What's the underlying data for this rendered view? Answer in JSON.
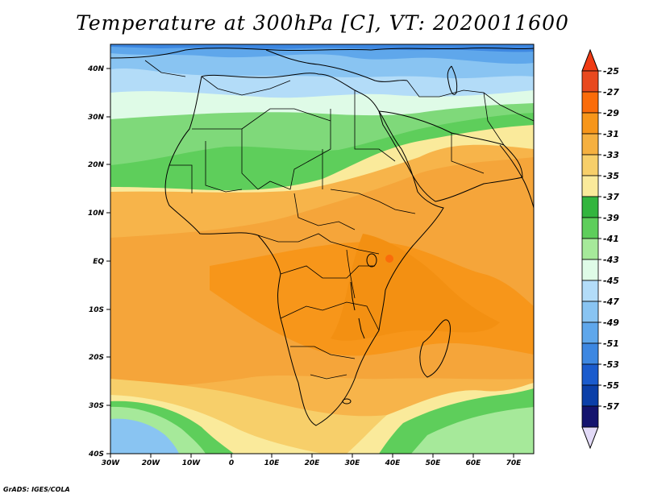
{
  "title": "Temperature at 300hPa [C], VT: 2020011600",
  "credit": "GrADS: IGES/COLA",
  "lon_ticks": [
    "30W",
    "20W",
    "10W",
    "0",
    "10E",
    "20E",
    "30E",
    "40E",
    "50E",
    "60E",
    "70E"
  ],
  "lat_ticks": [
    "40N",
    "30N",
    "20N",
    "10N",
    "EQ",
    "10S",
    "20S",
    "30S",
    "40S"
  ],
  "colorbar": {
    "labels": [
      "-25",
      "-27",
      "-29",
      "-31",
      "-33",
      "-35",
      "-37",
      "-39",
      "-41",
      "-43",
      "-45",
      "-47",
      "-49",
      "-51",
      "-53",
      "-55",
      "-57"
    ],
    "colors": [
      "#e8491f",
      "#fa6c0a",
      "#f7961a",
      "#f5b040",
      "#f7cf6a",
      "#faea9b",
      "#33b53e",
      "#5ece5b",
      "#a6e99a",
      "#dffbe7",
      "#b3dcf8",
      "#89c4f2",
      "#5fa7eb",
      "#3d87e1",
      "#1a5bcd",
      "#0b3fa8",
      "#14146e"
    ],
    "over_color": "#f03b14",
    "under_color": "#e2daf7"
  },
  "map": {
    "lon_range": [
      -30,
      75
    ],
    "lat_range": [
      -40,
      45
    ],
    "variable": "Temperature",
    "level": "300hPa",
    "units": "C",
    "valid_time": "2020011600"
  }
}
